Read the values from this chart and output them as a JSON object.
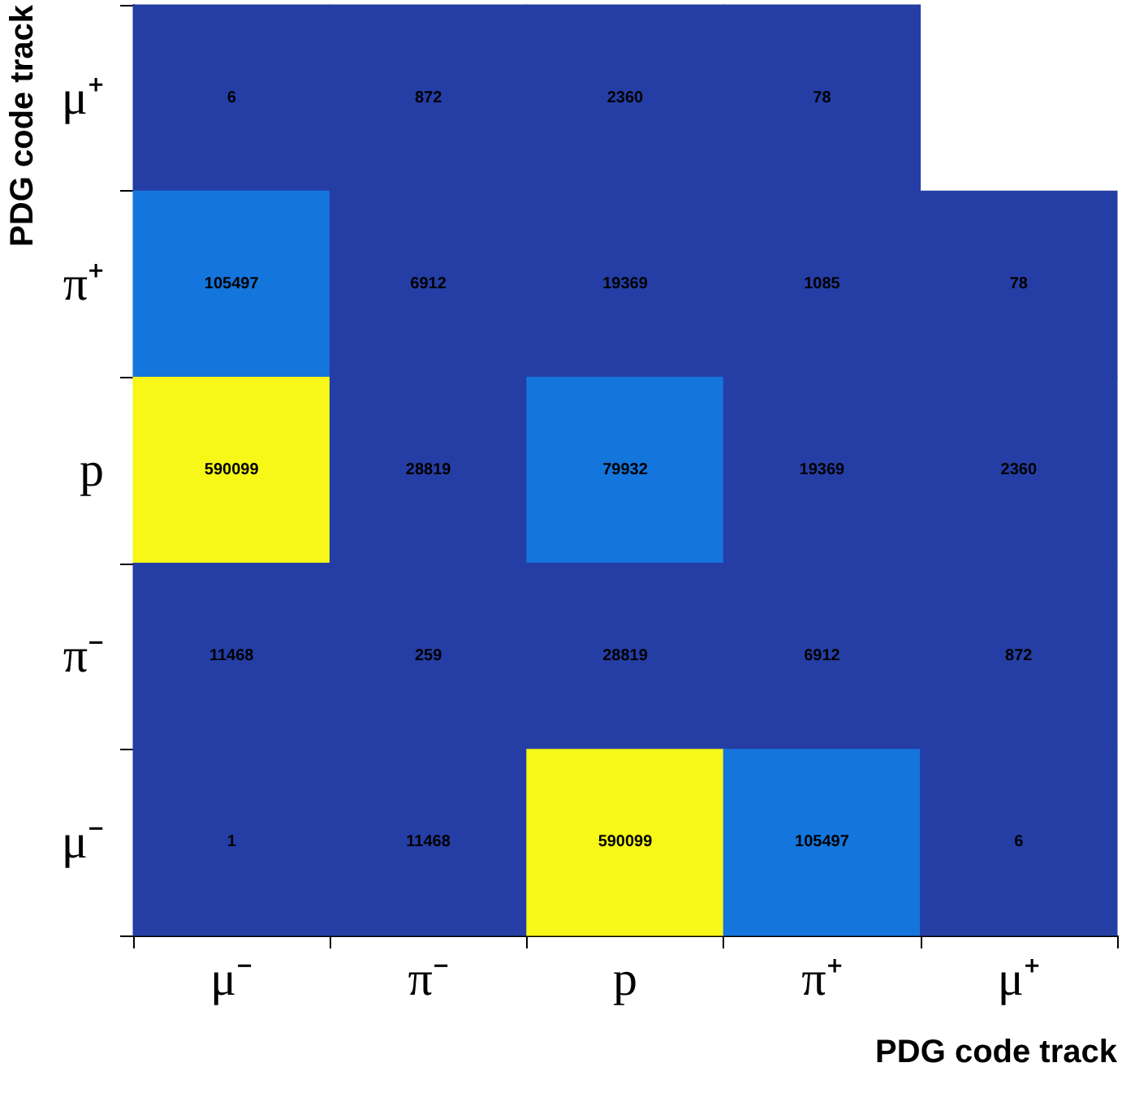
{
  "chart_data": {
    "type": "heatmap",
    "xlabel": "PDG code track",
    "ylabel": "PDG code track",
    "categories": [
      "μ⁻",
      "π⁻",
      "p",
      "π⁺",
      "μ⁺"
    ],
    "y_categories": [
      "μ⁺",
      "π⁺",
      "p",
      "π⁻",
      "μ⁻"
    ],
    "cells": [
      [
        6,
        872,
        2360,
        78,
        null
      ],
      [
        105497,
        6912,
        19369,
        1085,
        78
      ],
      [
        590099,
        28819,
        79932,
        19369,
        2360
      ],
      [
        11468,
        259,
        28819,
        6912,
        872
      ],
      [
        1,
        11468,
        590099,
        105497,
        6
      ]
    ],
    "data_labels": true
  }
}
